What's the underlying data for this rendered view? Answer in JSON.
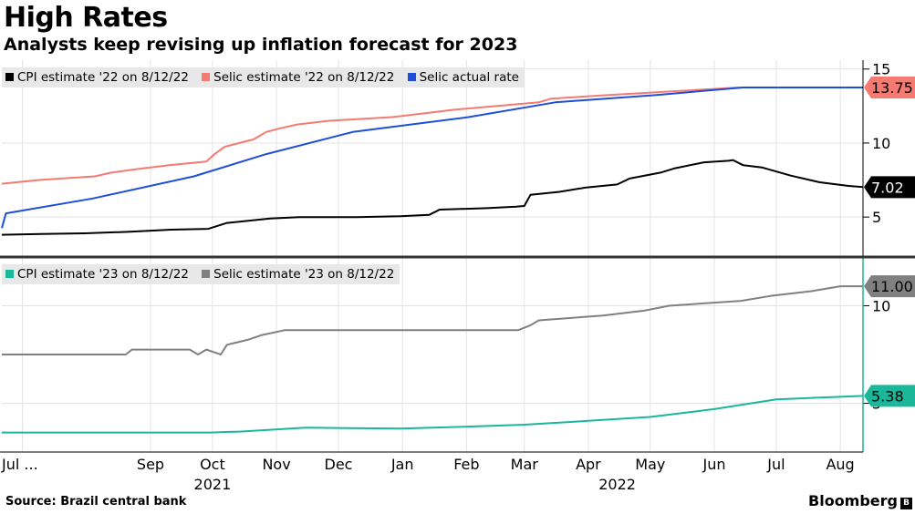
{
  "title": "High Rates",
  "subtitle": "Analysts keep revising up inflation forecast for 2023",
  "source": "Source:  Brazil central bank",
  "brand": "Bloomberg",
  "brand_mark": "B",
  "chart_data": {
    "type": "line",
    "x_ticks": [
      {
        "label": "Jul ...",
        "x": "2021-07-01"
      },
      {
        "label": "Sep",
        "x": "2021-09-01"
      },
      {
        "label": "Oct",
        "x": "2021-10-01"
      },
      {
        "label": "Nov",
        "x": "2021-11-01"
      },
      {
        "label": "Dec",
        "x": "2021-12-01"
      },
      {
        "label": "Jan",
        "x": "2022-01-01"
      },
      {
        "label": "Feb",
        "x": "2022-02-01"
      },
      {
        "label": "Mar",
        "x": "2022-03-01"
      },
      {
        "label": "Apr",
        "x": "2022-04-01"
      },
      {
        "label": "May",
        "x": "2022-05-01"
      },
      {
        "label": "Jun",
        "x": "2022-06-01"
      },
      {
        "label": "Jul",
        "x": "2022-07-01"
      },
      {
        "label": "Aug",
        "x": "2022-08-01"
      }
    ],
    "year_labels": [
      {
        "label": "2021",
        "x": "2021-10-01"
      },
      {
        "label": "2022",
        "x": "2022-04-15"
      }
    ],
    "xlim": [
      "2021-06-21",
      "2022-08-12"
    ],
    "panels": [
      {
        "ylim": [
          2.3,
          15.6
        ],
        "yticks": [
          5,
          10,
          15
        ],
        "legend_position": "top-left",
        "series": [
          {
            "name": "CPI estimate '22 on 8/12/22",
            "color": "#000000",
            "end_label": "7.02",
            "points": [
              [
                "2021-06-21",
                3.8
              ],
              [
                "2021-07-10",
                3.85
              ],
              [
                "2021-07-31",
                3.9
              ],
              [
                "2021-08-21",
                4.0
              ],
              [
                "2021-09-11",
                4.15
              ],
              [
                "2021-09-29",
                4.2
              ],
              [
                "2021-10-08",
                4.6
              ],
              [
                "2021-10-29",
                4.9
              ],
              [
                "2021-11-12",
                5.0
              ],
              [
                "2021-12-10",
                5.0
              ],
              [
                "2021-12-31",
                5.05
              ],
              [
                "2022-01-14",
                5.15
              ],
              [
                "2022-01-19",
                5.5
              ],
              [
                "2022-02-11",
                5.6
              ],
              [
                "2022-02-25",
                5.7
              ],
              [
                "2022-03-01",
                5.75
              ],
              [
                "2022-03-04",
                6.5
              ],
              [
                "2022-03-18",
                6.7
              ],
              [
                "2022-03-31",
                7.0
              ],
              [
                "2022-04-15",
                7.2
              ],
              [
                "2022-04-21",
                7.6
              ],
              [
                "2022-05-06",
                8.0
              ],
              [
                "2022-05-13",
                8.3
              ],
              [
                "2022-05-27",
                8.7
              ],
              [
                "2022-06-08",
                8.8
              ],
              [
                "2022-06-10",
                8.85
              ],
              [
                "2022-06-15",
                8.5
              ],
              [
                "2022-06-24",
                8.35
              ],
              [
                "2022-07-08",
                7.8
              ],
              [
                "2022-07-22",
                7.35
              ],
              [
                "2022-08-05",
                7.1
              ],
              [
                "2022-08-12",
                7.02
              ]
            ]
          },
          {
            "name": "Selic estimate '22 on 8/12/22",
            "color": "#f47a72",
            "end_label": "13.75",
            "points": [
              [
                "2021-06-21",
                7.25
              ],
              [
                "2021-07-09",
                7.5
              ],
              [
                "2021-08-05",
                7.75
              ],
              [
                "2021-08-13",
                8.0
              ],
              [
                "2021-08-26",
                8.25
              ],
              [
                "2021-09-10",
                8.5
              ],
              [
                "2021-09-28",
                8.75
              ],
              [
                "2021-10-02",
                9.25
              ],
              [
                "2021-10-07",
                9.75
              ],
              [
                "2021-10-14",
                10.0
              ],
              [
                "2021-10-21",
                10.25
              ],
              [
                "2021-10-27",
                10.75
              ],
              [
                "2021-11-03",
                11.0
              ],
              [
                "2021-11-11",
                11.25
              ],
              [
                "2021-11-26",
                11.5
              ],
              [
                "2021-12-27",
                11.75
              ],
              [
                "2022-01-11",
                12.0
              ],
              [
                "2022-01-26",
                12.25
              ],
              [
                "2022-02-16",
                12.5
              ],
              [
                "2022-03-08",
                12.75
              ],
              [
                "2022-03-14",
                13.0
              ],
              [
                "2022-04-11",
                13.25
              ],
              [
                "2022-06-13",
                13.75
              ],
              [
                "2022-08-12",
                13.75
              ]
            ]
          },
          {
            "name": "Selic actual rate",
            "color": "#1f4ed8",
            "end_label": "",
            "points": [
              [
                "2021-06-21",
                4.25
              ],
              [
                "2021-06-23",
                5.25
              ],
              [
                "2021-08-04",
                6.25
              ],
              [
                "2021-09-22",
                7.75
              ],
              [
                "2021-10-27",
                9.25
              ],
              [
                "2021-12-08",
                10.75
              ],
              [
                "2022-02-02",
                11.75
              ],
              [
                "2022-03-16",
                12.75
              ],
              [
                "2022-05-04",
                13.25
              ],
              [
                "2022-06-15",
                13.75
              ],
              [
                "2022-08-12",
                13.75
              ]
            ]
          }
        ]
      },
      {
        "ylim": [
          2.5,
          12.5
        ],
        "yticks": [
          5,
          10
        ],
        "legend_position": "top-left",
        "series": [
          {
            "name": "CPI estimate '23 on 8/12/22",
            "color": "#1ab79b",
            "end_label": "5.38",
            "points": [
              [
                "2021-06-21",
                3.5
              ],
              [
                "2021-09-30",
                3.5
              ],
              [
                "2021-10-15",
                3.55
              ],
              [
                "2021-11-15",
                3.75
              ],
              [
                "2021-12-31",
                3.7
              ],
              [
                "2022-01-31",
                3.8
              ],
              [
                "2022-03-01",
                3.9
              ],
              [
                "2022-04-01",
                4.1
              ],
              [
                "2022-05-01",
                4.3
              ],
              [
                "2022-06-01",
                4.7
              ],
              [
                "2022-07-01",
                5.2
              ],
              [
                "2022-08-12",
                5.38
              ]
            ]
          },
          {
            "name": "Selic estimate '23 on 8/12/22",
            "color": "#808080",
            "end_label": "11.00",
            "points": [
              [
                "2021-06-21",
                7.5
              ],
              [
                "2021-08-20",
                7.5
              ],
              [
                "2021-08-23",
                7.75
              ],
              [
                "2021-09-20",
                7.75
              ],
              [
                "2021-09-24",
                7.5
              ],
              [
                "2021-09-28",
                7.75
              ],
              [
                "2021-10-05",
                7.5
              ],
              [
                "2021-10-08",
                8.0
              ],
              [
                "2021-10-18",
                8.25
              ],
              [
                "2021-10-25",
                8.5
              ],
              [
                "2021-11-05",
                8.75
              ],
              [
                "2021-12-31",
                8.75
              ],
              [
                "2022-02-26",
                8.75
              ],
              [
                "2022-03-04",
                9.0
              ],
              [
                "2022-03-08",
                9.25
              ],
              [
                "2022-04-08",
                9.5
              ],
              [
                "2022-04-28",
                9.75
              ],
              [
                "2022-05-03",
                9.85
              ],
              [
                "2022-05-10",
                10.0
              ],
              [
                "2022-06-14",
                10.25
              ],
              [
                "2022-06-28",
                10.5
              ],
              [
                "2022-07-18",
                10.75
              ],
              [
                "2022-08-01",
                11.0
              ],
              [
                "2022-08-12",
                11.0
              ]
            ]
          }
        ]
      }
    ]
  }
}
